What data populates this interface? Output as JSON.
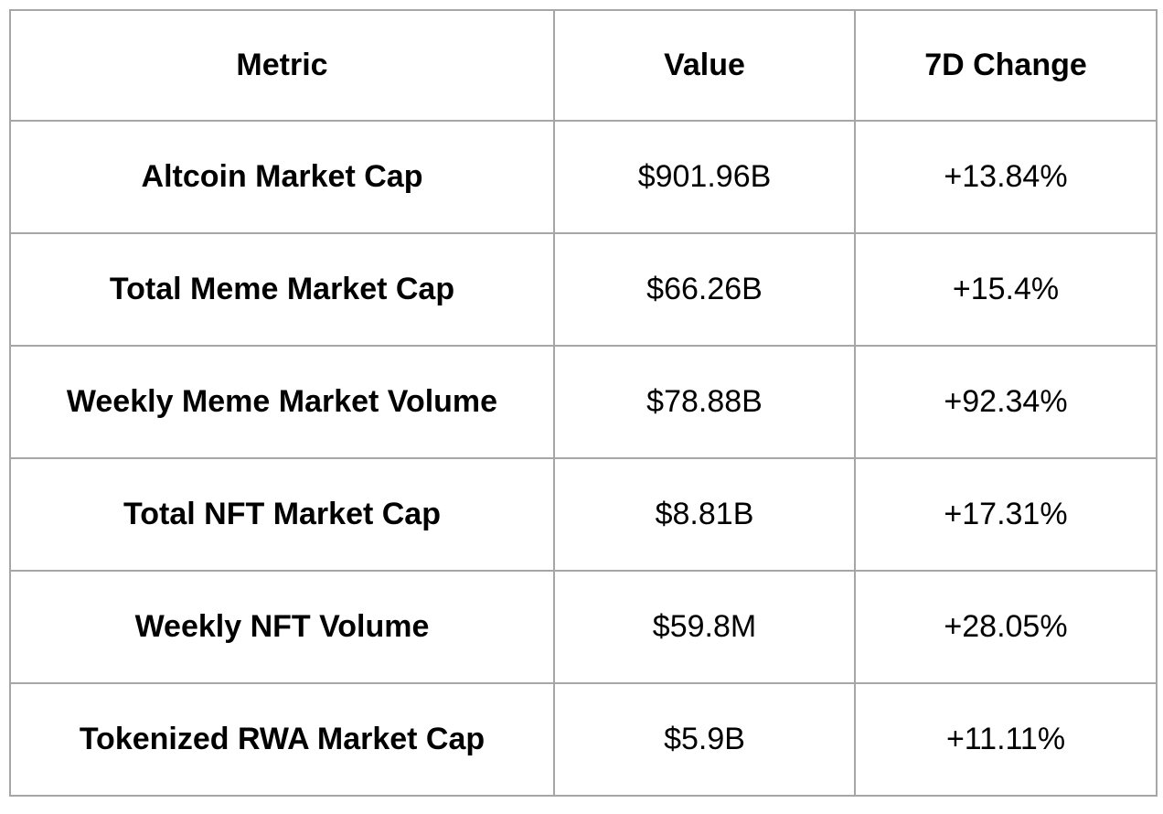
{
  "page": {
    "background_color": "#ffffff",
    "border_color": "#a6a6a6",
    "text_color": "#000000"
  },
  "table": {
    "headers": {
      "metric": "Metric",
      "value": "Value",
      "change": "7D Change"
    },
    "rows": [
      {
        "metric": "Altcoin Market Cap",
        "value": "$901.96B",
        "change": "+13.84%"
      },
      {
        "metric": "Total Meme Market Cap",
        "value": "$66.26B",
        "change": "+15.4%"
      },
      {
        "metric": "Weekly Meme Market Volume",
        "value": "$78.88B",
        "change": "+92.34%"
      },
      {
        "metric": "Total NFT Market Cap",
        "value": "$8.81B",
        "change": "+17.31%"
      },
      {
        "metric": "Weekly NFT Volume",
        "value": "$59.8M",
        "change": "+28.05%"
      },
      {
        "metric": "Tokenized RWA Market Cap",
        "value": "$5.9B",
        "change": "+11.11%"
      }
    ]
  },
  "chart_data": {
    "type": "table",
    "columns": [
      "Metric",
      "Value",
      "7D Change"
    ],
    "rows": [
      [
        "Altcoin Market Cap",
        "$901.96B",
        "+13.84%"
      ],
      [
        "Total Meme Market Cap",
        "$66.26B",
        "+15.4%"
      ],
      [
        "Weekly Meme Market Volume",
        "$78.88B",
        "+92.34%"
      ],
      [
        "Total NFT Market Cap",
        "$8.81B",
        "+17.31%"
      ],
      [
        "Weekly NFT Volume",
        "$59.8M",
        "+28.05%"
      ],
      [
        "Tokenized RWA Market Cap",
        "$5.9B",
        "+11.11%"
      ]
    ],
    "numeric": [
      {
        "metric": "Altcoin Market Cap",
        "value_usd": 901960000000,
        "change_7d_pct": 13.84
      },
      {
        "metric": "Total Meme Market Cap",
        "value_usd": 66260000000,
        "change_7d_pct": 15.4
      },
      {
        "metric": "Weekly Meme Market Volume",
        "value_usd": 78880000000,
        "change_7d_pct": 92.34
      },
      {
        "metric": "Total NFT Market Cap",
        "value_usd": 8810000000,
        "change_7d_pct": 17.31
      },
      {
        "metric": "Weekly NFT Volume",
        "value_usd": 59800000,
        "change_7d_pct": 28.05
      },
      {
        "metric": "Tokenized RWA Market Cap",
        "value_usd": 5900000000,
        "change_7d_pct": 11.11
      }
    ],
    "title": "",
    "legend": false,
    "grid": true
  }
}
